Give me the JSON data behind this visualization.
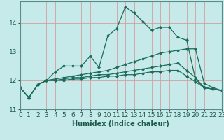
{
  "xlabel": "Humidex (Indice chaleur)",
  "background_color": "#c6e9e9",
  "grid_color": "#b0d4d4",
  "line_color": "#1a6b5a",
  "x_values": [
    0,
    1,
    2,
    3,
    4,
    5,
    6,
    7,
    8,
    9,
    10,
    11,
    12,
    13,
    14,
    15,
    16,
    17,
    18,
    19,
    20,
    21,
    22,
    23
  ],
  "series": [
    [
      11.75,
      11.4,
      11.85,
      12.0,
      12.3,
      12.5,
      12.5,
      12.5,
      12.85,
      12.45,
      13.55,
      13.8,
      14.55,
      14.35,
      14.05,
      13.75,
      13.85,
      13.85,
      13.5,
      13.4,
      12.05,
      11.75,
      11.7,
      11.65
    ],
    [
      11.75,
      11.4,
      11.85,
      12.0,
      12.05,
      12.1,
      12.15,
      12.2,
      12.25,
      12.3,
      12.35,
      12.45,
      12.55,
      12.65,
      12.75,
      12.85,
      12.95,
      13.0,
      13.05,
      13.1,
      13.1,
      11.9,
      11.75,
      11.65
    ],
    [
      11.75,
      11.4,
      11.85,
      12.0,
      12.0,
      12.05,
      12.1,
      12.1,
      12.15,
      12.2,
      12.2,
      12.25,
      12.3,
      12.35,
      12.4,
      12.45,
      12.5,
      12.55,
      12.6,
      12.35,
      12.1,
      11.75,
      11.7,
      11.65
    ],
    [
      11.75,
      11.4,
      11.85,
      12.0,
      12.0,
      12.0,
      12.05,
      12.05,
      12.1,
      12.1,
      12.15,
      12.15,
      12.2,
      12.2,
      12.25,
      12.3,
      12.3,
      12.35,
      12.35,
      12.15,
      11.95,
      11.75,
      11.7,
      11.65
    ]
  ],
  "ylim": [
    11.0,
    14.75
  ],
  "yticks": [
    11,
    12,
    13,
    14
  ],
  "xlim": [
    0,
    23
  ],
  "xticks": [
    0,
    1,
    2,
    3,
    4,
    5,
    6,
    7,
    8,
    9,
    10,
    11,
    12,
    13,
    14,
    15,
    16,
    17,
    18,
    19,
    20,
    21,
    22,
    23
  ],
  "marker": "D",
  "marker_size": 2.0,
  "line_width": 0.9,
  "xlabel_fontsize": 7,
  "tick_fontsize": 6.5
}
